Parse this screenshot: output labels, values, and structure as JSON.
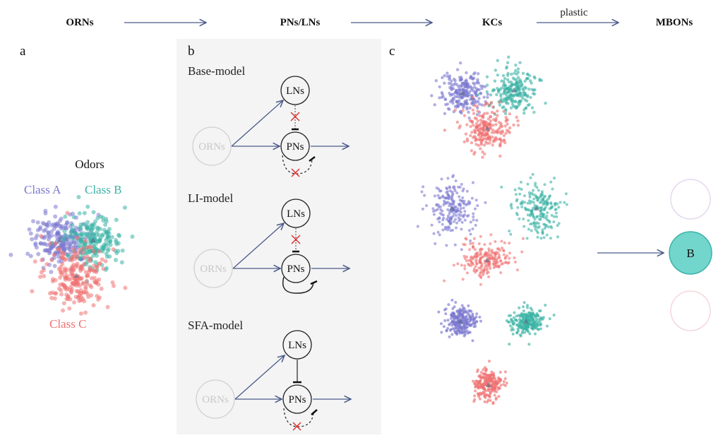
{
  "header": {
    "stages": [
      "ORNs",
      "PNs/LNs",
      "KCs",
      "MBONs"
    ],
    "plastic_label": "plastic"
  },
  "panels": {
    "a": "a",
    "b": "b",
    "c": "c"
  },
  "panel_a": {
    "title": "Odors",
    "class_a": "Class A",
    "class_b": "Class B",
    "class_c": "Class C"
  },
  "panel_b": {
    "models": [
      {
        "title": "Base-model",
        "lns": "LNs",
        "pns": "PNs",
        "orns": "ORNs"
      },
      {
        "title": "LI-model",
        "lns": "LNs",
        "pns": "PNs",
        "orns": "ORNs"
      },
      {
        "title": "SFA-model",
        "lns": "LNs",
        "pns": "PNs",
        "orns": "ORNs"
      }
    ]
  },
  "panel_c": {
    "mbon_active_label": "B"
  },
  "colors": {
    "class_a": "#7b78d0",
    "class_b": "#3bb3a5",
    "class_c": "#f07272",
    "arrow": "#4a5a8a",
    "inhibit_x": "#e03030",
    "panel_b_bg": "#f4f4f4",
    "mbon_fill": "#72d6cd"
  }
}
